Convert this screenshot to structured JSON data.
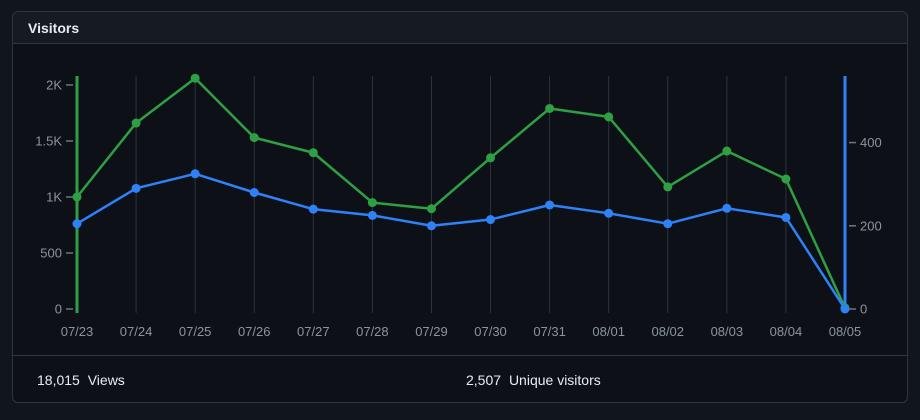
{
  "card": {
    "title": "Visitors"
  },
  "footer": {
    "views_count": "18,015",
    "views_label": "Views",
    "unique_count": "2,507",
    "unique_label": "Unique visitors"
  },
  "chart_data": {
    "type": "line",
    "title": "Visitors",
    "x": [
      "07/23",
      "07/24",
      "07/25",
      "07/26",
      "07/27",
      "07/28",
      "07/29",
      "07/30",
      "07/31",
      "08/01",
      "08/02",
      "08/03",
      "08/04",
      "08/05"
    ],
    "series": [
      {
        "name": "Views",
        "axis": "left",
        "color": "#2ea043",
        "values": [
          1000,
          1660,
          2060,
          1530,
          1395,
          950,
          895,
          1350,
          1790,
          1715,
          1090,
          1410,
          1160,
          10
        ]
      },
      {
        "name": "Unique visitors",
        "axis": "right",
        "color": "#2f81f7",
        "values": [
          205,
          290,
          325,
          280,
          240,
          225,
          200,
          215,
          250,
          230,
          205,
          242,
          220,
          0
        ]
      }
    ],
    "left_axis": {
      "color": "#2ea043",
      "tick_values": [
        0,
        500,
        1000,
        1500,
        2000
      ],
      "tick_labels": [
        "0",
        "500",
        "1K",
        "1.5K",
        "2K"
      ],
      "range": [
        0,
        2080
      ]
    },
    "right_axis": {
      "color": "#2f81f7",
      "tick_values": [
        0,
        200,
        400
      ],
      "tick_labels": [
        "0",
        "200",
        "400"
      ],
      "range": [
        0,
        560
      ]
    },
    "grid": "vertical",
    "legend": "none",
    "tick_label_color": "#8b949e",
    "tick_mark_color": "#6e7681",
    "grid_color": "#2d333b"
  },
  "colors": {
    "page_bg": "#11151c",
    "card_bg": "#0d1117",
    "header_bg": "#161b22",
    "border": "#30363d",
    "text": "#e6edf3",
    "muted": "#8b949e",
    "grid": "#2d333b",
    "accent_green": "#2ea043",
    "accent_blue": "#2f81f7"
  }
}
